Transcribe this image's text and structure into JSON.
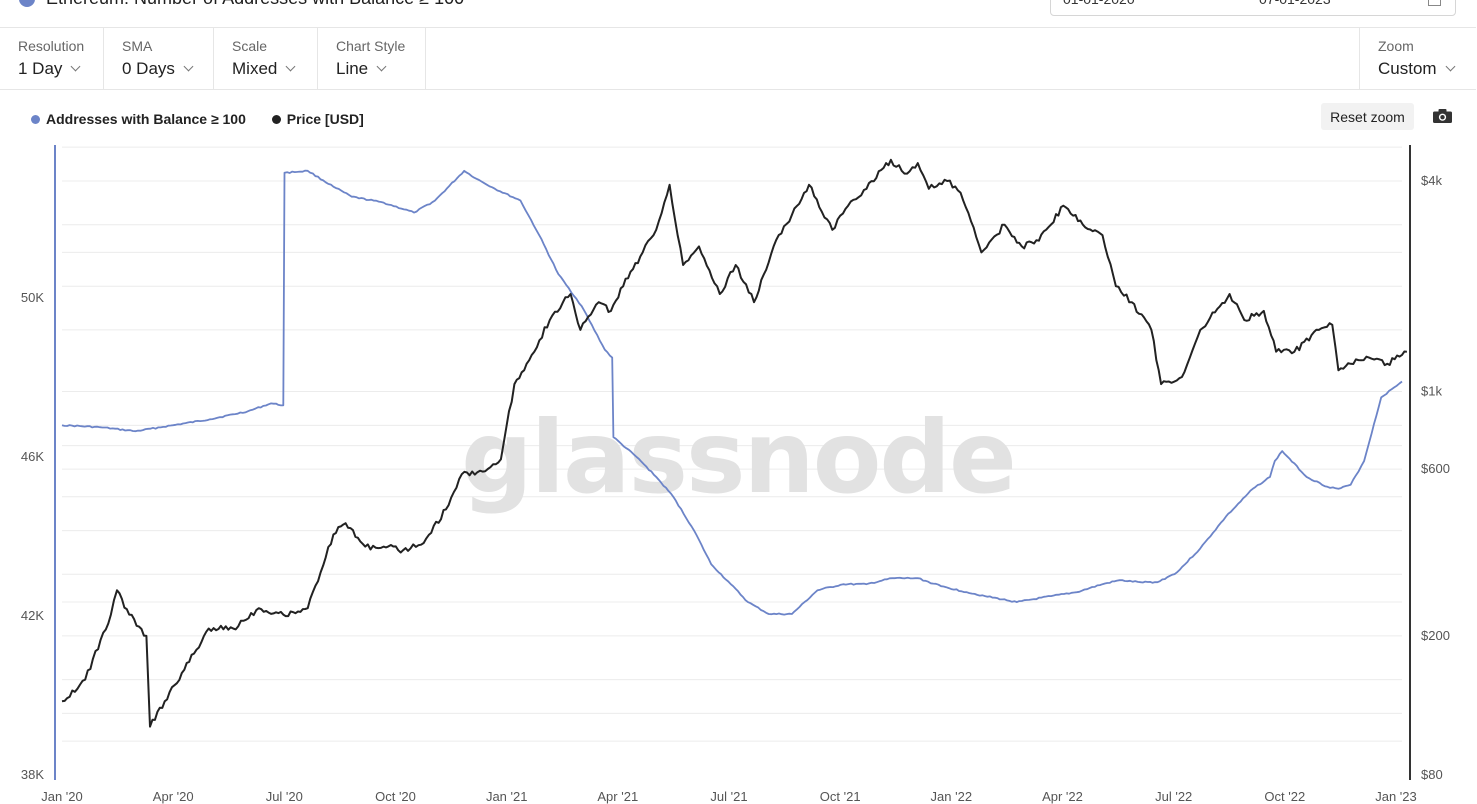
{
  "header": {
    "title": "Ethereum: Number of Addresses with Balance ≥ 100",
    "date_start": "01-01-2020",
    "date_end": "07-01-2023"
  },
  "controls": {
    "resolution": {
      "label": "Resolution",
      "value": "1 Day"
    },
    "sma": {
      "label": "SMA",
      "value": "0 Days"
    },
    "scale": {
      "label": "Scale",
      "value": "Mixed"
    },
    "chart_style": {
      "label": "Chart Style",
      "value": "Line"
    },
    "zoom": {
      "label": "Zoom",
      "value": "Custom"
    }
  },
  "buttons": {
    "reset_zoom": "Reset zoom"
  },
  "watermark": "glassnode",
  "colors": {
    "addresses": "#6c84c8",
    "price": "#222222",
    "left_axis": "#6c84c8",
    "right_axis": "#333333",
    "grid": "#ececec"
  },
  "icons": {
    "camera": "camera-icon",
    "info": "info-icon",
    "calendar": "calendar-icon"
  },
  "chart_data": {
    "type": "line",
    "x_ticks": [
      "Jan '20",
      "Apr '20",
      "Jul '20",
      "Oct '20",
      "Jan '21",
      "Apr '21",
      "Jul '21",
      "Oct '21",
      "Jan '22",
      "Apr '22",
      "Jul '22",
      "Oct '22",
      "Jan '23"
    ],
    "y_left": {
      "ticks": [
        "38K",
        "42K",
        "46K",
        "50K"
      ],
      "tick_values": [
        38000,
        42000,
        46000,
        50000
      ],
      "range": [
        38000,
        53850
      ],
      "scale": "linear"
    },
    "y_right": {
      "ticks": [
        "$80",
        "$200",
        "$600",
        "$1k",
        "$4k"
      ],
      "tick_values": [
        80,
        200,
        600,
        1000,
        4000
      ],
      "range": [
        80,
        5070
      ],
      "scale": "log"
    },
    "legend": [
      "Addresses with Balance ≥ 100",
      "Price [USD]"
    ],
    "series": [
      {
        "name": "Addresses with Balance ≥ 100",
        "axis": "left",
        "x": [
          "2020-01-01",
          "2020-02-01",
          "2020-03-01",
          "2020-04-01",
          "2020-05-01",
          "2020-06-01",
          "2020-06-20",
          "2020-06-30",
          "2020-07-01",
          "2020-07-20",
          "2020-08-10",
          "2020-08-25",
          "2020-09-20",
          "2020-10-15",
          "2020-11-01",
          "2020-11-25",
          "2020-12-05",
          "2020-12-20",
          "2021-01-10",
          "2021-01-25",
          "2021-02-10",
          "2021-03-01",
          "2021-03-20",
          "2021-03-26",
          "2021-03-27",
          "2021-04-15",
          "2021-05-01",
          "2021-05-15",
          "2021-06-01",
          "2021-06-15",
          "2021-07-01",
          "2021-07-15",
          "2021-08-01",
          "2021-08-20",
          "2021-09-10",
          "2021-10-01",
          "2021-10-20",
          "2021-11-10",
          "2021-12-01",
          "2021-12-20",
          "2022-01-10",
          "2022-01-25",
          "2022-02-20",
          "2022-03-20",
          "2022-04-10",
          "2022-05-01",
          "2022-05-15",
          "2022-06-01",
          "2022-06-15",
          "2022-07-01",
          "2022-07-20",
          "2022-08-10",
          "2022-09-01",
          "2022-09-15",
          "2022-09-19",
          "2022-09-25",
          "2022-10-15",
          "2022-11-01",
          "2022-11-10",
          "2022-11-20",
          "2022-12-01",
          "2022-12-15",
          "2023-01-01"
        ],
        "values": [
          46800,
          46750,
          46650,
          46800,
          46950,
          47150,
          47350,
          47300,
          53150,
          53200,
          52800,
          52550,
          52400,
          52150,
          52450,
          53200,
          53000,
          52750,
          52450,
          51600,
          50600,
          49800,
          48700,
          48500,
          46500,
          46000,
          45500,
          45000,
          44150,
          43300,
          42800,
          42350,
          42050,
          42050,
          42650,
          42800,
          42800,
          42950,
          42950,
          42750,
          42600,
          42500,
          42350,
          42500,
          42600,
          42800,
          42900,
          42850,
          42850,
          43100,
          43700,
          44500,
          45200,
          45500,
          45900,
          46150,
          45500,
          45250,
          45200,
          45300,
          45900,
          47500,
          47900
        ]
      },
      {
        "name": "Price [USD]",
        "axis": "right",
        "x": [
          "2020-01-01",
          "2020-01-20",
          "2020-02-10",
          "2020-02-15",
          "2020-02-25",
          "2020-03-10",
          "2020-03-13",
          "2020-03-25",
          "2020-04-10",
          "2020-04-30",
          "2020-05-20",
          "2020-06-10",
          "2020-06-30",
          "2020-07-20",
          "2020-08-10",
          "2020-08-20",
          "2020-09-05",
          "2020-09-20",
          "2020-10-10",
          "2020-10-25",
          "2020-11-10",
          "2020-11-23",
          "2020-12-10",
          "2020-12-25",
          "2021-01-05",
          "2021-01-15",
          "2021-02-05",
          "2021-02-20",
          "2021-02-28",
          "2021-03-15",
          "2021-03-25",
          "2021-04-10",
          "2021-04-20",
          "2021-05-01",
          "2021-05-12",
          "2021-05-23",
          "2021-06-05",
          "2021-06-22",
          "2021-07-05",
          "2021-07-20",
          "2021-08-05",
          "2021-08-20",
          "2021-09-03",
          "2021-09-22",
          "2021-10-05",
          "2021-10-20",
          "2021-11-01",
          "2021-11-09",
          "2021-11-20",
          "2021-12-01",
          "2021-12-10",
          "2021-12-25",
          "2022-01-05",
          "2022-01-22",
          "2022-02-10",
          "2022-02-24",
          "2022-03-10",
          "2022-03-30",
          "2022-04-15",
          "2022-05-01",
          "2022-05-12",
          "2022-05-25",
          "2022-06-10",
          "2022-06-18",
          "2022-07-05",
          "2022-07-20",
          "2022-08-13",
          "2022-08-25",
          "2022-09-10",
          "2022-09-20",
          "2022-10-05",
          "2022-10-25",
          "2022-11-05",
          "2022-11-10",
          "2022-11-20",
          "2022-12-05",
          "2022-12-20",
          "2023-01-05"
        ],
        "values": [
          130,
          150,
          230,
          270,
          230,
          200,
          110,
          130,
          160,
          210,
          210,
          240,
          230,
          240,
          390,
          420,
          360,
          360,
          350,
          380,
          460,
          580,
          590,
          640,
          1050,
          1200,
          1650,
          1900,
          1500,
          1800,
          1700,
          2200,
          2500,
          2900,
          3900,
          2300,
          2600,
          1900,
          2300,
          1800,
          2600,
          3200,
          3900,
          2900,
          3400,
          3800,
          4300,
          4600,
          4200,
          4500,
          3800,
          4000,
          3700,
          2500,
          3000,
          2600,
          2700,
          3400,
          3000,
          2800,
          2000,
          1800,
          1500,
          1050,
          1100,
          1500,
          1900,
          1600,
          1700,
          1300,
          1300,
          1500,
          1550,
          1150,
          1200,
          1250,
          1200,
          1300
        ]
      }
    ]
  }
}
